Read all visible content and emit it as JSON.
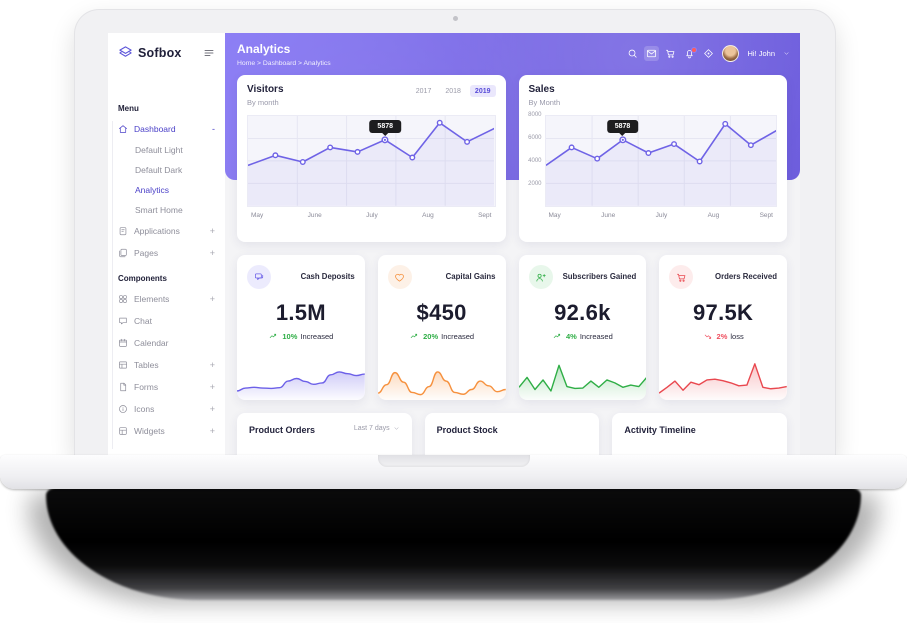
{
  "sidebar": {
    "logo": "Sofbox",
    "sections": [
      {
        "label": "Menu",
        "items": [
          {
            "label": "Dashboard",
            "icon": "home-icon",
            "toggle": "-",
            "active": true,
            "children": [
              {
                "label": "Default Light"
              },
              {
                "label": "Default Dark"
              },
              {
                "label": "Analytics",
                "active": true
              },
              {
                "label": "Smart Home"
              }
            ]
          },
          {
            "label": "Applications",
            "icon": "clipboard-icon",
            "toggle": "+"
          },
          {
            "label": "Pages",
            "icon": "pages-icon",
            "toggle": "+"
          }
        ]
      },
      {
        "label": "Components",
        "items": [
          {
            "label": "Elements",
            "icon": "grid-icon",
            "toggle": "+"
          },
          {
            "label": "Chat",
            "icon": "chat-icon"
          },
          {
            "label": "Calendar",
            "icon": "calendar-icon"
          },
          {
            "label": "Tables",
            "icon": "table-icon",
            "toggle": "+"
          },
          {
            "label": "Forms",
            "icon": "form-icon",
            "toggle": "+"
          },
          {
            "label": "Icons",
            "icon": "info-icon",
            "toggle": "+"
          },
          {
            "label": "Widgets",
            "icon": "widget-icon",
            "toggle": "+"
          }
        ]
      }
    ]
  },
  "header": {
    "title": "Analytics",
    "breadcrumb": "Home > Dashboard > Analytics",
    "icons": [
      {
        "name": "search-icon"
      },
      {
        "name": "mail-icon",
        "highlight": true
      },
      {
        "name": "cart-icon"
      },
      {
        "name": "bell-icon",
        "badge": true
      },
      {
        "name": "compass-icon"
      }
    ],
    "user": {
      "greeting": "Hi! John"
    }
  },
  "colors": {
    "band_purple": "#7a6ae4",
    "accent_indigo": "#4b41c8",
    "chart_line": "#6f63e6",
    "green": "#2fae46",
    "orange": "#f6913e",
    "red": "#e9484f",
    "tooltip_bg": "#1d1d1f"
  },
  "chart_data": [
    {
      "id": "visitors",
      "type": "line",
      "title": "Visitors",
      "subtitle": "By month",
      "tabs": [
        "2017",
        "2018",
        "2019"
      ],
      "active_tab": "2019",
      "x_labels": [
        "May",
        "June",
        "July",
        "Aug",
        "Sept"
      ],
      "values": [
        3600,
        4500,
        3900,
        5200,
        4800,
        5878,
        4300,
        7400,
        5700,
        6900
      ],
      "ylim": [
        0,
        8000
      ],
      "y_ticks": [],
      "tooltip": {
        "index": 5,
        "label": "5878"
      },
      "color": "#6f63e6",
      "grid": true,
      "legend": "none"
    },
    {
      "id": "sales",
      "type": "line",
      "title": "Sales",
      "subtitle": "By Month",
      "x_labels": [
        "May",
        "June",
        "July",
        "Aug",
        "Sept"
      ],
      "values": [
        3600,
        5200,
        4200,
        5878,
        4700,
        5500,
        3950,
        7300,
        5400,
        6700
      ],
      "ylim": [
        0,
        8000
      ],
      "y_ticks": [
        "8000",
        "6000",
        "4000",
        "2000"
      ],
      "tooltip": {
        "index": 3,
        "label": "5878"
      },
      "color": "#6f63e6",
      "grid": true,
      "legend": "none"
    },
    {
      "id": "spark-cash",
      "type": "area",
      "smooth": true,
      "color": "#6c60e8",
      "values": [
        18,
        26,
        28,
        26,
        25,
        27,
        45,
        52,
        44,
        36,
        40,
        62,
        70,
        65,
        60,
        64
      ]
    },
    {
      "id": "spark-capital",
      "type": "area",
      "smooth": true,
      "color": "#f6913e",
      "values": [
        12,
        35,
        68,
        42,
        14,
        8,
        30,
        70,
        45,
        14,
        9,
        22,
        45,
        32,
        16,
        22
      ]
    },
    {
      "id": "spark-subs",
      "type": "area",
      "smooth": false,
      "color": "#2fae46",
      "values": [
        28,
        55,
        22,
        48,
        18,
        88,
        30,
        25,
        26,
        45,
        28,
        48,
        40,
        28,
        34,
        30,
        55
      ]
    },
    {
      "id": "spark-orders",
      "type": "area",
      "smooth": false,
      "color": "#e9484f",
      "values": [
        12,
        28,
        45,
        20,
        42,
        35,
        48,
        50,
        46,
        40,
        32,
        34,
        92,
        28,
        24,
        26,
        30
      ]
    }
  ],
  "stats": [
    {
      "title": "Cash Deposits",
      "value": "1.5M",
      "trend_value": "10%",
      "trend_label": "Increased",
      "direction": "up",
      "icon": "message-icon",
      "accent": "#6c60e8",
      "icon_bg": "#ecebfd",
      "sparkline": "spark-cash"
    },
    {
      "title": "Capital Gains",
      "value": "$450",
      "trend_value": "20%",
      "trend_label": "Increased",
      "direction": "up",
      "icon": "heart-icon",
      "accent": "#f6913e",
      "icon_bg": "#fdf1e7",
      "sparkline": "spark-capital"
    },
    {
      "title": "Subscribers Gained",
      "value": "92.6k",
      "trend_value": "4%",
      "trend_label": "Increased",
      "direction": "up",
      "icon": "user-plus-icon",
      "accent": "#2fae46",
      "icon_bg": "#e8f7eb",
      "sparkline": "spark-subs"
    },
    {
      "title": "Orders Received",
      "value": "97.5K",
      "trend_value": "2%",
      "trend_label": "loss",
      "direction": "down",
      "icon": "cart-icon",
      "accent": "#e9484f",
      "icon_bg": "#fdecec",
      "sparkline": "spark-orders"
    }
  ],
  "bottom_cards": [
    {
      "title": "Product Orders",
      "filter": "Last 7 days"
    },
    {
      "title": "Product Stock"
    },
    {
      "title": "Activity Timeline"
    }
  ]
}
